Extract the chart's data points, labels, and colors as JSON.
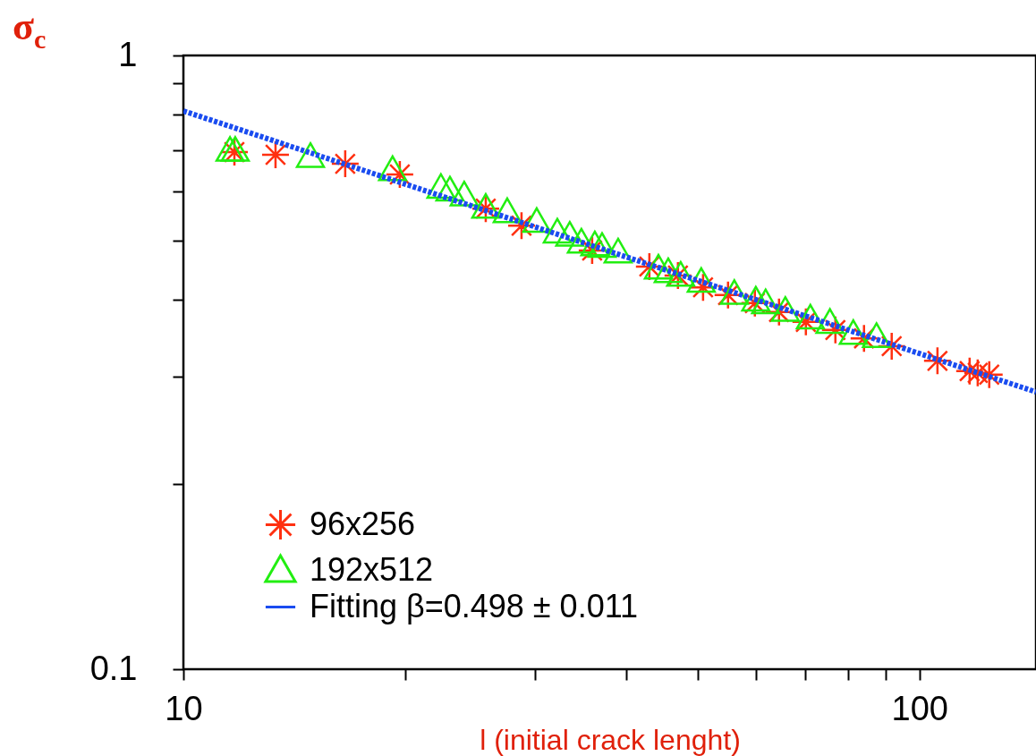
{
  "chart_data": {
    "type": "scatter",
    "xlabel": "l (initial crack lenght)",
    "ylabel": "σ$_{c}$",
    "log": "xy",
    "xlim": [
      10,
      144
    ],
    "ylim": [
      0.1,
      1
    ],
    "xticks": [
      10,
      {
        "value": 20,
        "label": null
      },
      {
        "value": 30,
        "label": null
      },
      {
        "value": 40,
        "label": null
      },
      {
        "value": 50,
        "label": null
      },
      {
        "value": 60,
        "label": null
      },
      {
        "value": 70,
        "label": null
      },
      {
        "value": 80,
        "label": null
      },
      {
        "value": 90,
        "label": null
      },
      100
    ],
    "yticks": [
      0.1,
      {
        "value": 0.2,
        "label": null
      },
      {
        "value": 0.3,
        "label": null
      },
      {
        "value": 0.4,
        "label": null
      },
      {
        "value": 0.5,
        "label": null
      },
      {
        "value": 0.6,
        "label": null
      },
      {
        "value": 0.7,
        "label": null
      },
      {
        "value": 0.8,
        "label": null
      },
      {
        "value": 0.9,
        "label": null
      },
      1
    ],
    "grid": false,
    "legend": "bottom left",
    "series": [
      {
        "name": "96x256",
        "color": "#ff3010",
        "marker": "cross",
        "x": [
          11.73,
          13.34,
          16.59,
          19.68,
          25.75,
          28.8,
          35.92,
          42.96,
          46.98,
          50.82,
          54.95,
          59.76,
          64.45,
          70.1,
          76.88,
          84.08,
          91.69,
          105.8,
          117,
          120,
          124.4
        ],
        "values": [
          0.696,
          0.689,
          0.666,
          0.64,
          0.563,
          0.528,
          0.481,
          0.453,
          0.438,
          0.419,
          0.407,
          0.395,
          0.382,
          0.368,
          0.357,
          0.346,
          0.336,
          0.318,
          0.306,
          0.304,
          0.302
        ]
      },
      {
        "name": "192x512",
        "color": "#22ee11",
        "marker": "triangle",
        "x": [
          11.57,
          11.76,
          14.88,
          19.24,
          22.38,
          23.02,
          24.07,
          25.75,
          27.54,
          30.2,
          32.21,
          33.49,
          34.73,
          36.22,
          37.05,
          38.96,
          44.19,
          45.57,
          47.38,
          50.53,
          56.04,
          59.93,
          61.8,
          65.73,
          71.09,
          75.58,
          81.31,
          87.43
        ],
        "values": [
          0.7,
          0.7,
          0.684,
          0.651,
          0.609,
          0.603,
          0.592,
          0.565,
          0.556,
          0.536,
          0.515,
          0.509,
          0.496,
          0.491,
          0.488,
          0.478,
          0.45,
          0.444,
          0.438,
          0.428,
          0.409,
          0.399,
          0.395,
          0.384,
          0.373,
          0.367,
          0.352,
          0.348
        ]
      },
      {
        "name": "Fitting β=0.498 ± 0.011",
        "type": "line",
        "color": "#1a4cf0",
        "marker": "none",
        "line_style": "dotted",
        "x": [
          10,
          144
        ],
        "values": [
          0.812,
          0.283
        ]
      }
    ]
  }
}
